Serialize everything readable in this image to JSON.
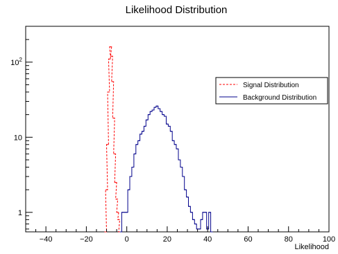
{
  "chart_data": {
    "type": "line",
    "title": "Likelihood Distribution",
    "xlabel": "Likelihood",
    "ylabel": "",
    "xlim": [
      -50,
      100
    ],
    "ylim": [
      0.55,
      300
    ],
    "yscale": "log",
    "grid": false,
    "legend_position": "right",
    "x_ticks": [
      {
        "value": -40,
        "label": "−40"
      },
      {
        "value": -20,
        "label": "−20"
      },
      {
        "value": 0,
        "label": "0"
      },
      {
        "value": 20,
        "label": "20"
      },
      {
        "value": 40,
        "label": "40"
      },
      {
        "value": 60,
        "label": "60"
      },
      {
        "value": 80,
        "label": "80"
      },
      {
        "value": 100,
        "label": "100"
      }
    ],
    "y_ticks": [
      {
        "value": 1,
        "label": "1"
      },
      {
        "value": 10,
        "label": "10"
      },
      {
        "value": 100,
        "label": "10^2"
      }
    ],
    "series": [
      {
        "name": "Signal Distribution",
        "color": "#ff0000",
        "style": "dashed",
        "x": [
          -10.5,
          -10,
          -9.5,
          -9,
          -8.5,
          -8,
          -7.5,
          -7,
          -6.5,
          -6,
          -5.5,
          -5,
          -4.5,
          -4,
          -3.5
        ],
        "y": [
          0.55,
          2.0,
          8,
          40,
          110,
          160,
          120,
          55,
          18,
          6,
          2.5,
          1.5,
          1.0,
          0.8,
          0.55
        ]
      },
      {
        "name": "Background Distribution",
        "color": "#00008b",
        "style": "solid",
        "x": [
          -3,
          -2,
          -1,
          0,
          1,
          2,
          3,
          4,
          5,
          6,
          7,
          8,
          9,
          10,
          11,
          12,
          13,
          14,
          15,
          16,
          17,
          18,
          19,
          20,
          21,
          22,
          23,
          24,
          25,
          26,
          27,
          28,
          29,
          30,
          31,
          32,
          33,
          34,
          35,
          36,
          37,
          38,
          39,
          40,
          41,
          42
        ],
        "y": [
          0.55,
          1,
          1,
          1,
          2,
          3,
          4,
          6,
          8,
          9,
          11,
          12,
          14,
          17,
          20,
          22,
          23,
          25,
          26,
          24,
          22,
          20,
          19,
          15,
          14,
          12,
          9,
          8,
          7,
          5,
          4,
          3,
          2,
          1.6,
          1.2,
          1.0,
          0.8,
          0.7,
          0.6,
          0.6,
          0.8,
          1.0,
          1.0,
          0.6,
          1.0,
          0.55
        ]
      }
    ]
  }
}
